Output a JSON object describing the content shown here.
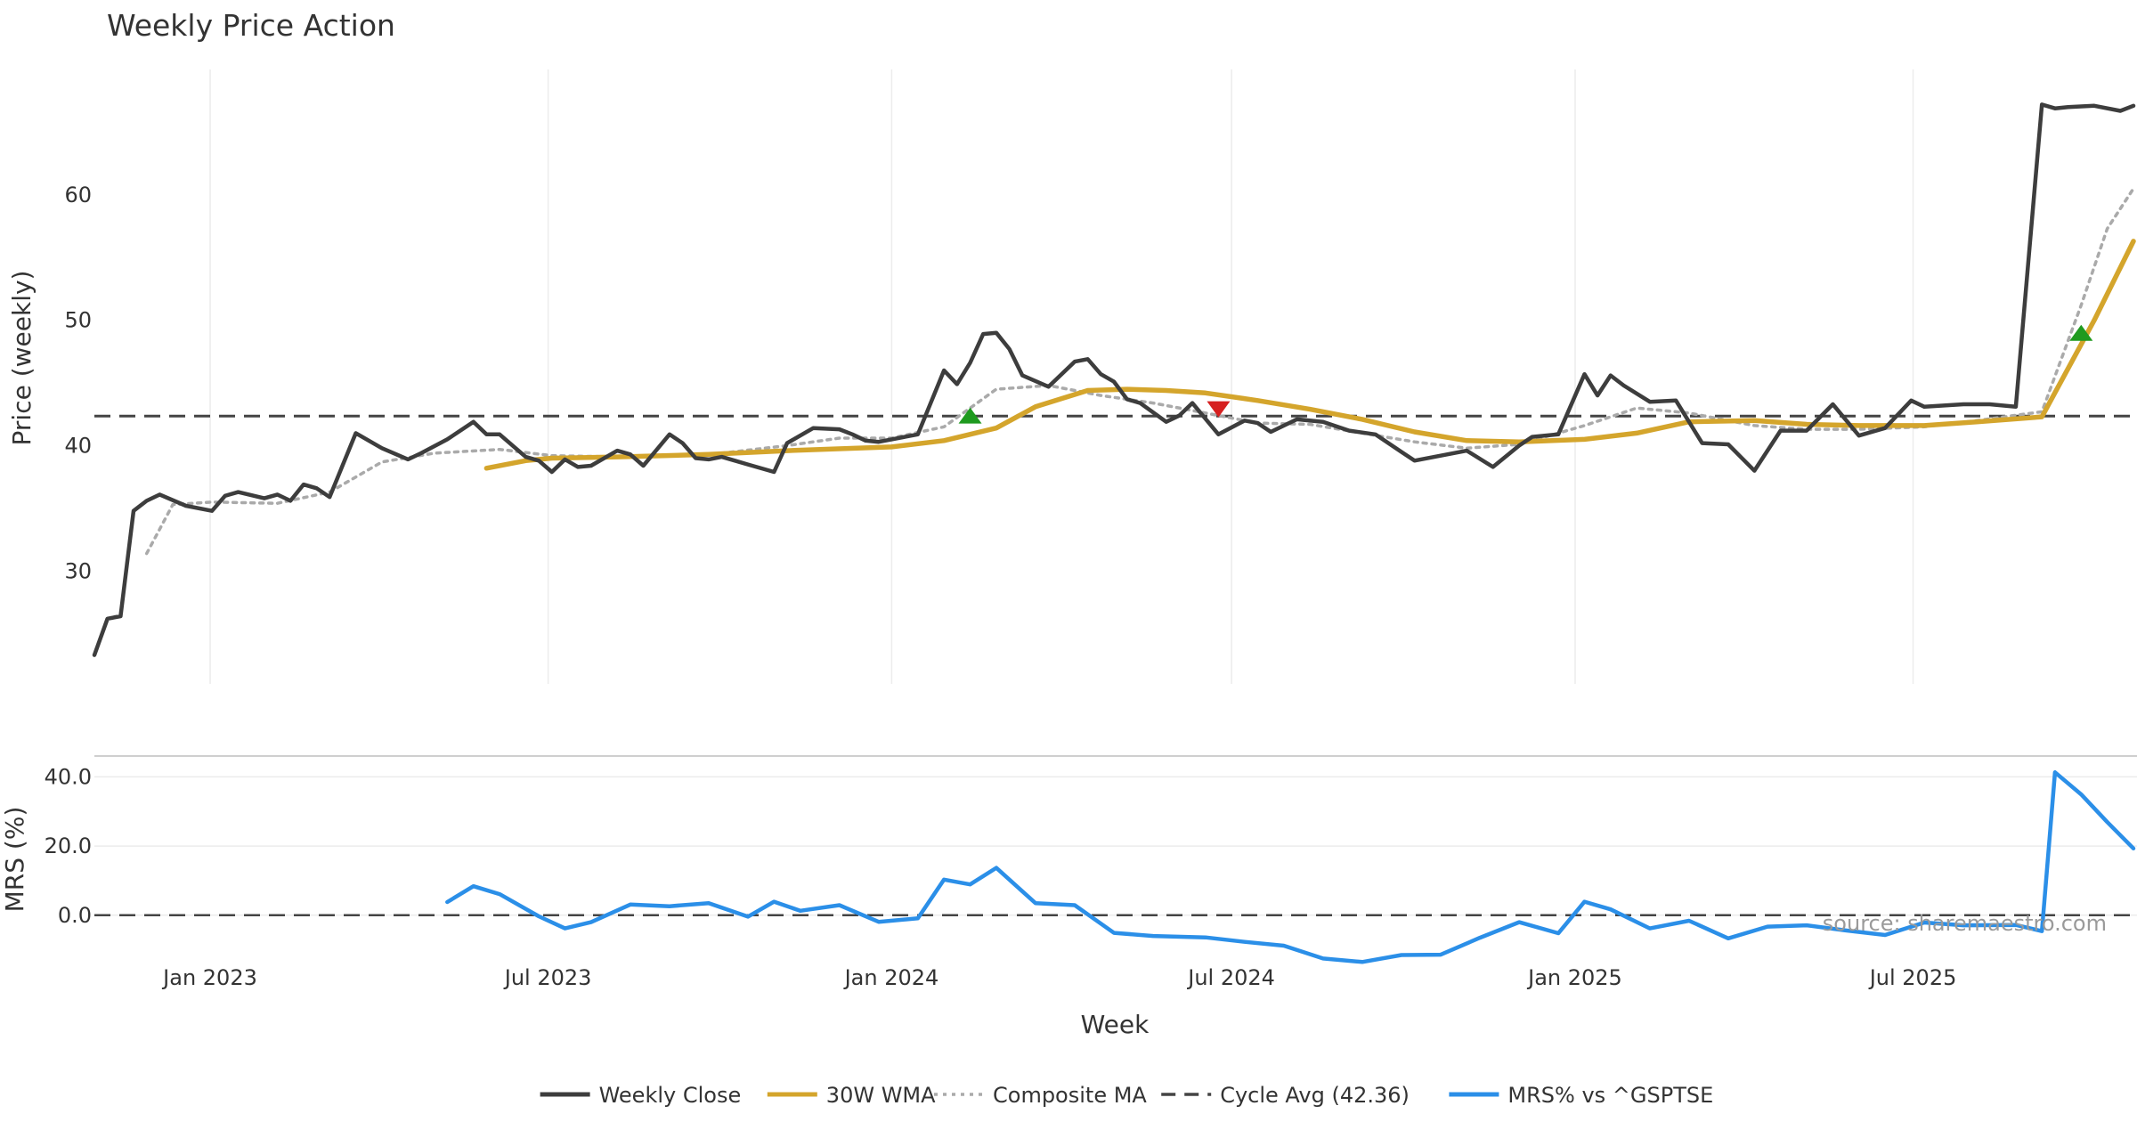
{
  "chart_data": {
    "type": "line",
    "title": "Weekly Price Action",
    "xlabel": "Week",
    "source_note": "source: sharemaestro.com",
    "x_ticks": [
      "Jan 2023",
      "Jul 2023",
      "Jan 2024",
      "Jul 2024",
      "Jan 2025",
      "Jul 2025"
    ],
    "x_range": [
      "2022-10-31",
      "2025-10-27"
    ],
    "price_panel": {
      "ylabel": "Price (weekly)",
      "ylim": [
        21,
        70
      ],
      "y_ticks": [
        30,
        40,
        50,
        60
      ],
      "cycle_avg": 42.36
    },
    "mrs_panel": {
      "ylabel": "MRS (%)",
      "ylim": [
        -16,
        46
      ],
      "y_ticks": [
        "0.0",
        "20.0",
        "40.0"
      ],
      "y_tick_values": [
        0,
        20,
        40
      ],
      "zero_line": 0
    },
    "legend": [
      {
        "label": "Weekly Close",
        "color": "#3d3d3d",
        "style": "solid"
      },
      {
        "label": "30W WMA",
        "color": "#d4a52c",
        "style": "solid"
      },
      {
        "label": "Composite MA",
        "color": "#aaaaaa",
        "style": "dotted"
      },
      {
        "label": "Cycle Avg (42.36)",
        "color": "#444444",
        "style": "dashed"
      },
      {
        "label": "MRS% vs ^GSPTSE",
        "color": "#2b8fe8",
        "style": "solid"
      }
    ],
    "series": [
      {
        "name": "Weekly Close",
        "color": "#3d3d3d",
        "x": [
          "2022-10-31",
          "2022-11-07",
          "2022-11-14",
          "2022-11-21",
          "2022-11-28",
          "2022-12-05",
          "2022-12-19",
          "2023-01-02",
          "2023-01-09",
          "2023-01-16",
          "2023-01-30",
          "2023-02-06",
          "2023-02-13",
          "2023-02-20",
          "2023-02-27",
          "2023-03-06",
          "2023-03-20",
          "2023-04-03",
          "2023-04-17",
          "2023-04-24",
          "2023-05-08",
          "2023-05-22",
          "2023-05-29",
          "2023-06-05",
          "2023-06-19",
          "2023-06-26",
          "2023-07-03",
          "2023-07-10",
          "2023-07-17",
          "2023-07-24",
          "2023-08-07",
          "2023-08-14",
          "2023-08-21",
          "2023-09-04",
          "2023-09-11",
          "2023-09-18",
          "2023-09-25",
          "2023-10-02",
          "2023-10-09",
          "2023-10-16",
          "2023-10-30",
          "2023-11-06",
          "2023-11-20",
          "2023-12-04",
          "2023-12-11",
          "2023-12-18",
          "2023-12-25",
          "2024-01-01",
          "2024-01-15",
          "2024-01-29",
          "2024-02-05",
          "2024-02-12",
          "2024-02-19",
          "2024-02-26",
          "2024-03-04",
          "2024-03-11",
          "2024-03-25",
          "2024-04-08",
          "2024-04-15",
          "2024-04-22",
          "2024-04-29",
          "2024-05-06",
          "2024-05-13",
          "2024-05-27",
          "2024-06-03",
          "2024-06-10",
          "2024-06-24",
          "2024-07-08",
          "2024-07-15",
          "2024-07-22",
          "2024-08-05",
          "2024-08-19",
          "2024-09-02",
          "2024-09-16",
          "2024-09-30",
          "2024-10-07",
          "2024-10-21",
          "2024-11-04",
          "2024-11-18",
          "2024-12-02",
          "2024-12-09",
          "2024-12-23",
          "2025-01-06",
          "2025-01-13",
          "2025-01-20",
          "2025-01-27",
          "2025-02-10",
          "2025-02-24",
          "2025-03-10",
          "2025-03-24",
          "2025-04-07",
          "2025-04-21",
          "2025-05-05",
          "2025-05-19",
          "2025-06-02",
          "2025-06-16",
          "2025-06-30",
          "2025-07-07",
          "2025-07-28",
          "2025-08-11",
          "2025-08-25",
          "2025-09-08",
          "2025-09-15",
          "2025-09-22",
          "2025-10-06",
          "2025-10-20",
          "2025-10-27"
        ],
        "values": [
          23.3,
          26.2,
          26.4,
          34.8,
          35.6,
          36.1,
          35.2,
          34.8,
          36.0,
          36.3,
          35.8,
          36.1,
          35.6,
          36.9,
          36.6,
          35.9,
          41.0,
          39.8,
          38.9,
          39.4,
          40.5,
          41.9,
          40.9,
          40.9,
          39.1,
          38.8,
          37.9,
          38.9,
          38.3,
          38.4,
          39.6,
          39.3,
          38.4,
          40.9,
          40.2,
          39.0,
          38.9,
          39.1,
          38.8,
          38.5,
          37.9,
          40.2,
          41.4,
          41.3,
          40.9,
          40.4,
          40.3,
          40.5,
          40.9,
          46.0,
          44.9,
          46.6,
          48.9,
          49.0,
          47.7,
          45.6,
          44.7,
          46.7,
          46.9,
          45.7,
          45.1,
          43.7,
          43.4,
          41.9,
          42.4,
          43.4,
          40.9,
          42.0,
          41.8,
          41.1,
          42.1,
          41.9,
          41.2,
          40.9,
          39.5,
          38.8,
          39.2,
          39.6,
          38.3,
          40.0,
          40.7,
          40.9,
          45.7,
          44.0,
          45.6,
          44.8,
          43.5,
          43.6,
          40.2,
          40.1,
          38.0,
          41.2,
          41.2,
          43.3,
          40.8,
          41.4,
          43.6,
          43.1,
          43.3,
          43.3,
          43.1,
          67.2,
          66.9,
          67.0,
          67.1,
          66.7,
          67.1
        ]
      },
      {
        "name": "30W WMA",
        "color": "#d4a52c",
        "x": [
          "2023-05-29",
          "2023-06-19",
          "2023-07-03",
          "2023-08-07",
          "2023-09-25",
          "2023-11-06",
          "2024-01-01",
          "2024-01-29",
          "2024-02-26",
          "2024-03-18",
          "2024-04-15",
          "2024-05-06",
          "2024-05-27",
          "2024-06-17",
          "2024-07-15",
          "2024-08-12",
          "2024-09-09",
          "2024-10-07",
          "2024-11-04",
          "2024-12-02",
          "2025-01-06",
          "2025-02-03",
          "2025-03-03",
          "2025-04-07",
          "2025-05-05",
          "2025-06-02",
          "2025-07-07",
          "2025-08-04",
          "2025-09-08",
          "2025-10-06",
          "2025-10-27"
        ],
        "values": [
          38.2,
          38.8,
          39.0,
          39.1,
          39.3,
          39.6,
          39.9,
          40.4,
          41.4,
          43.1,
          44.4,
          44.5,
          44.4,
          44.2,
          43.6,
          42.9,
          42.1,
          41.1,
          40.4,
          40.3,
          40.5,
          41.0,
          41.9,
          42.0,
          41.7,
          41.6,
          41.6,
          41.9,
          42.3,
          50.0,
          56.3
        ]
      },
      {
        "name": "Composite MA",
        "color": "#aaaaaa",
        "x": [
          "2022-11-28",
          "2022-12-12",
          "2023-01-02",
          "2023-02-06",
          "2023-03-06",
          "2023-04-03",
          "2023-05-01",
          "2023-06-05",
          "2023-07-03",
          "2023-08-07",
          "2023-09-04",
          "2023-10-02",
          "2023-11-06",
          "2023-12-04",
          "2024-01-01",
          "2024-01-29",
          "2024-02-26",
          "2024-03-25",
          "2024-04-22",
          "2024-05-20",
          "2024-06-17",
          "2024-07-15",
          "2024-08-12",
          "2024-09-09",
          "2024-10-07",
          "2024-11-04",
          "2024-12-02",
          "2025-01-06",
          "2025-02-03",
          "2025-03-03",
          "2025-04-07",
          "2025-05-05",
          "2025-06-02",
          "2025-07-07",
          "2025-08-04",
          "2025-09-08",
          "2025-09-29",
          "2025-10-13",
          "2025-10-27"
        ],
        "values": [
          31.4,
          35.3,
          35.5,
          35.4,
          36.3,
          38.7,
          39.4,
          39.7,
          39.2,
          39.1,
          39.2,
          39.4,
          40.0,
          40.6,
          40.6,
          41.5,
          44.5,
          44.8,
          44.0,
          43.4,
          42.6,
          41.8,
          41.7,
          41.0,
          40.3,
          39.8,
          40.1,
          41.6,
          43.0,
          42.6,
          41.6,
          41.3,
          41.3,
          41.5,
          42.0,
          42.7,
          51.2,
          57.3,
          60.5
        ]
      },
      {
        "name": "MRS% vs ^GSPTSE",
        "color": "#2b8fe8",
        "x": [
          "2023-05-08",
          "2023-05-22",
          "2023-06-05",
          "2023-06-26",
          "2023-07-10",
          "2023-07-24",
          "2023-08-14",
          "2023-09-04",
          "2023-09-25",
          "2023-10-16",
          "2023-10-30",
          "2023-11-13",
          "2023-12-04",
          "2023-12-25",
          "2024-01-15",
          "2024-01-29",
          "2024-02-12",
          "2024-02-26",
          "2024-03-18",
          "2024-04-08",
          "2024-04-29",
          "2024-05-20",
          "2024-06-17",
          "2024-07-08",
          "2024-07-29",
          "2024-08-19",
          "2024-09-09",
          "2024-09-30",
          "2024-10-21",
          "2024-11-11",
          "2024-12-02",
          "2024-12-23",
          "2025-01-06",
          "2025-01-20",
          "2025-02-10",
          "2025-03-03",
          "2025-03-24",
          "2025-04-14",
          "2025-05-05",
          "2025-05-26",
          "2025-06-16",
          "2025-07-07",
          "2025-07-28",
          "2025-08-25",
          "2025-09-08",
          "2025-09-15",
          "2025-09-29",
          "2025-10-13",
          "2025-10-27"
        ],
        "values": [
          3.8,
          8.4,
          6.1,
          -0.3,
          -3.8,
          -2.0,
          3.1,
          2.6,
          3.5,
          -0.4,
          3.9,
          1.3,
          2.9,
          -1.9,
          -0.9,
          10.3,
          8.9,
          13.7,
          3.5,
          2.9,
          -5.1,
          -6.0,
          -6.4,
          -7.7,
          -8.8,
          -12.5,
          -13.5,
          -11.5,
          -11.4,
          -6.5,
          -2.0,
          -5.2,
          3.9,
          1.7,
          -3.8,
          -1.6,
          -6.7,
          -3.3,
          -2.9,
          -4.4,
          -5.7,
          -2.1,
          -2.9,
          -2.8,
          -4.6,
          41.3,
          34.9,
          26.9,
          19.3
        ]
      }
    ],
    "markers": [
      {
        "type": "buy",
        "direction": "up",
        "x": "2024-02-12",
        "y": 42.4,
        "color": "#1f9a1f"
      },
      {
        "type": "sell",
        "direction": "down",
        "x": "2024-06-24",
        "y": 42.9,
        "color": "#d62020"
      },
      {
        "type": "buy",
        "direction": "up",
        "x": "2025-09-29",
        "y": 49.0,
        "color": "#1f9a1f"
      }
    ]
  }
}
